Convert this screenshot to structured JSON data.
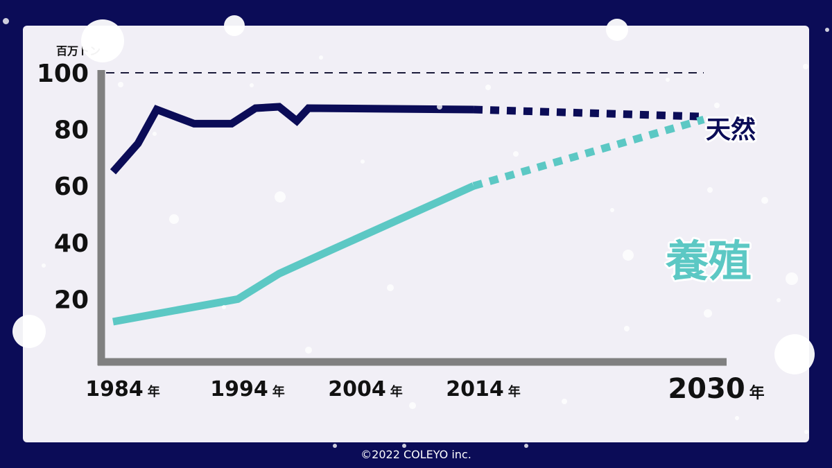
{
  "chart_data": {
    "type": "line",
    "unit_label": "百万トン",
    "y_ticks": [
      "100",
      "80",
      "60",
      "40",
      "20"
    ],
    "y_tick_values": [
      100,
      80,
      60,
      40,
      20
    ],
    "ylim": [
      0,
      100
    ],
    "reference_line": 100,
    "x_ticks": [
      {
        "year": 1984,
        "label": "1984",
        "suffix": "年"
      },
      {
        "year": 1994,
        "label": "1994",
        "suffix": "年"
      },
      {
        "year": 2004,
        "label": "2004",
        "suffix": "年"
      },
      {
        "year": 2014,
        "label": "2014",
        "suffix": "年"
      },
      {
        "year": 2030,
        "label": "2030",
        "suffix": "年"
      }
    ],
    "series": [
      {
        "name": "天然",
        "color": "#0b0c57",
        "actual": [
          [
            1984,
            65
          ],
          [
            1986,
            75
          ],
          [
            1987.5,
            87
          ],
          [
            1990.5,
            82
          ],
          [
            1993.5,
            82
          ],
          [
            1995.5,
            87.5
          ],
          [
            1997.5,
            88
          ],
          [
            1999,
            83
          ],
          [
            2000,
            87.5
          ],
          [
            2014,
            87
          ]
        ],
        "projected": [
          [
            2014,
            87
          ],
          [
            2030,
            84.5
          ]
        ]
      },
      {
        "name": "養殖",
        "color": "#5cc8c4",
        "actual": [
          [
            1984,
            12
          ],
          [
            1994,
            20
          ],
          [
            1997.5,
            29
          ],
          [
            2002,
            37.5
          ],
          [
            2014,
            60
          ]
        ],
        "projected": [
          [
            2014,
            60
          ],
          [
            2030,
            83.5
          ]
        ]
      }
    ]
  },
  "footer": {
    "copyright": "©2022 COLEYO inc."
  }
}
